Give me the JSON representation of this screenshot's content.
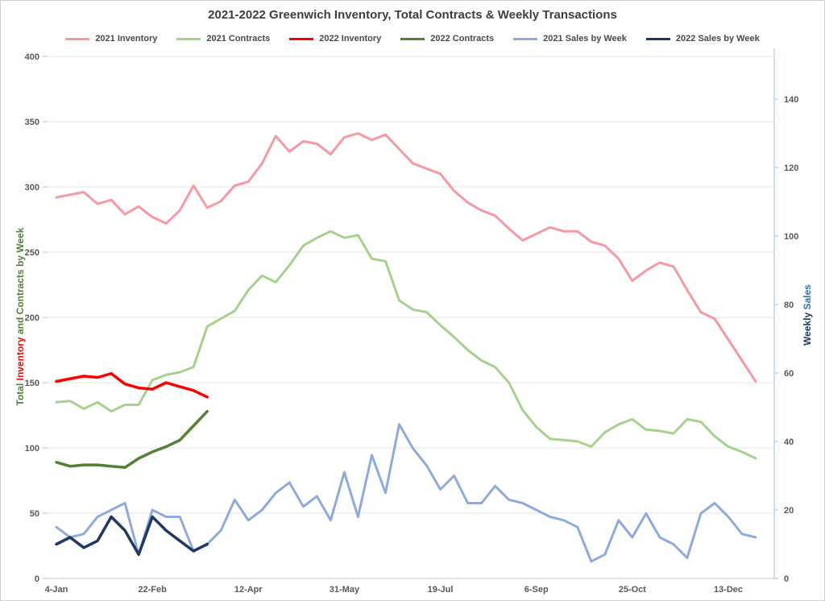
{
  "title": "2021-2022 Greenwich Inventory, Total Contracts & Weekly Transactions",
  "left_axis_title_parts": [
    {
      "text": "Total ",
      "color": "#538135"
    },
    {
      "text": "Inventory",
      "color": "#FF0000"
    },
    {
      "text": " and Contracts by Week",
      "color": "#538135"
    }
  ],
  "right_axis_title_parts": [
    {
      "text": "Weekly ",
      "color": "#1F3864"
    },
    {
      "text": "Sales",
      "color": "#2E75B6"
    }
  ],
  "colors": {
    "gridline": "#e4e4e4",
    "bottom_axis": "#c6c6c6",
    "left_tick": "#bfbfbf",
    "right_axis": "#b4c7e7",
    "tick_label": "#595959"
  },
  "chart_data": {
    "type": "line",
    "title": "2021-2022 Greenwich Inventory, Total Contracts & Weekly Transactions",
    "x_axis_label": "",
    "left_axis": {
      "label": "Total Inventory and Contracts by Week",
      "min": 0,
      "max": 400,
      "tick_labels": [
        "0",
        "50",
        "100",
        "150",
        "200",
        "250",
        "300",
        "350",
        "400"
      ]
    },
    "right_axis": {
      "label": "Weekly Sales",
      "min": 0,
      "max": 152,
      "tick_labels": [
        "0",
        "20",
        "40",
        "60",
        "80",
        "100",
        "120",
        "140"
      ],
      "tick_step": 20
    },
    "x_tick_labels": [
      "4-Jan",
      "22-Feb",
      "12-Apr",
      "31-May",
      "19-Jul",
      "6-Sep",
      "25-Oct",
      "13-Dec"
    ],
    "x_tick_weeks": [
      1,
      8,
      15,
      22,
      29,
      36,
      43,
      50
    ],
    "weeks": [
      "4-Jan",
      "11-Jan",
      "18-Jan",
      "25-Jan",
      "1-Feb",
      "8-Feb",
      "15-Feb",
      "22-Feb",
      "1-Mar",
      "8-Mar",
      "15-Mar",
      "22-Mar",
      "29-Mar",
      "5-Apr",
      "12-Apr",
      "19-Apr",
      "26-Apr",
      "3-May",
      "10-May",
      "17-May",
      "24-May",
      "31-May",
      "7-Jun",
      "14-Jun",
      "21-Jun",
      "28-Jun",
      "5-Jul",
      "12-Jul",
      "19-Jul",
      "26-Jul",
      "2-Aug",
      "9-Aug",
      "16-Aug",
      "23-Aug",
      "30-Aug",
      "6-Sep",
      "13-Sep",
      "20-Sep",
      "27-Sep",
      "4-Oct",
      "11-Oct",
      "18-Oct",
      "25-Oct",
      "1-Nov",
      "8-Nov",
      "15-Nov",
      "22-Nov",
      "29-Nov",
      "6-Dec",
      "13-Dec",
      "20-Dec",
      "27-Dec"
    ],
    "legend_position": "top",
    "grid": true,
    "series": [
      {
        "name": "2021 Inventory",
        "color": "#F799A4",
        "axis": "left",
        "width": 3,
        "values": [
          292,
          294,
          296,
          287,
          290,
          279,
          285,
          277,
          272,
          282,
          301,
          284,
          289,
          301,
          304,
          318,
          339,
          327,
          335,
          333,
          325,
          338,
          341,
          336,
          340,
          329,
          318,
          314,
          310,
          297,
          288,
          282,
          278,
          268,
          259,
          264,
          269,
          266,
          266,
          258,
          255,
          245,
          228,
          236,
          242,
          239,
          221,
          204,
          199,
          183,
          167,
          151
        ]
      },
      {
        "name": "2021 Contracts",
        "color": "#A9D18E",
        "axis": "left",
        "width": 3,
        "values": [
          135,
          136,
          130,
          135,
          128,
          133,
          133,
          152,
          156,
          158,
          162,
          193,
          199,
          205,
          221,
          232,
          227,
          240,
          255,
          261,
          266,
          261,
          263,
          245,
          243,
          213,
          206,
          204,
          194,
          185,
          175,
          167,
          162,
          150,
          129,
          116,
          107,
          106,
          105,
          101,
          112,
          118,
          122,
          114,
          113,
          111,
          122,
          120,
          109,
          101,
          97,
          92
        ]
      },
      {
        "name": "2022 Inventory",
        "color": "#FF0000",
        "axis": "left",
        "width": 3.5,
        "values": [
          151,
          153,
          155,
          154,
          157,
          149,
          146,
          145,
          150,
          147,
          144,
          139
        ]
      },
      {
        "name": "2022 Contracts",
        "color": "#538135",
        "axis": "left",
        "width": 3.5,
        "values": [
          89,
          86,
          87,
          87,
          86,
          85,
          92,
          97,
          101,
          106,
          117,
          128
        ]
      },
      {
        "name": "2021 Sales by Week",
        "color": "#8FAADC",
        "axis": "right",
        "width": 3,
        "values": [
          15,
          12,
          13,
          18,
          20,
          22,
          7,
          20,
          18,
          18,
          8,
          10,
          14,
          23,
          17,
          20,
          25,
          28,
          21,
          24,
          17,
          31,
          18,
          36,
          25,
          45,
          38,
          33,
          26,
          30,
          22,
          22,
          27,
          23,
          22,
          20,
          18,
          17,
          15,
          5,
          7,
          17,
          12,
          19,
          12,
          10,
          6,
          19,
          22,
          18,
          13,
          12
        ]
      },
      {
        "name": "2022 Sales by Week",
        "color": "#203864",
        "axis": "right",
        "width": 3.5,
        "values": [
          10,
          12,
          9,
          11,
          18,
          14,
          7,
          18,
          14,
          11,
          8,
          10
        ]
      }
    ]
  }
}
